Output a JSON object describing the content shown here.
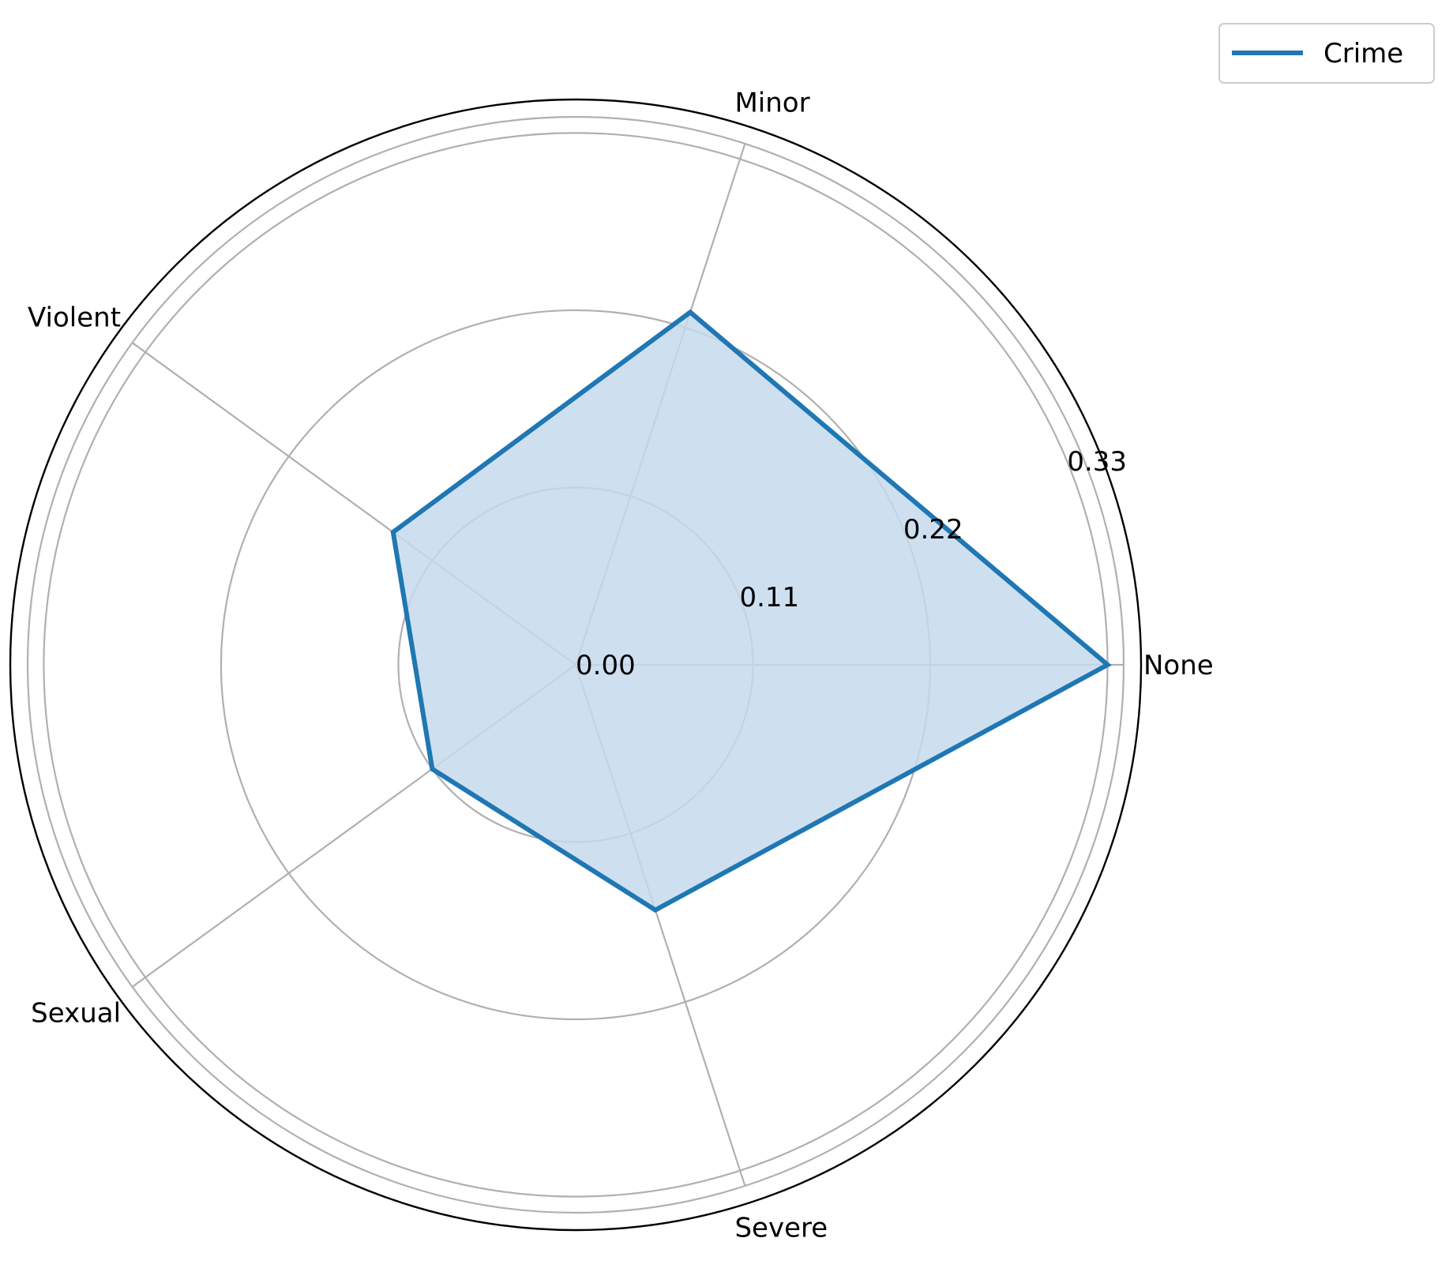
{
  "chart_data": {
    "type": "radar",
    "categories": [
      "None",
      "Minor",
      "Violent",
      "Sexual",
      "Severe"
    ],
    "series": [
      {
        "name": "Crime",
        "values": [
          0.33,
          0.23,
          0.14,
          0.11,
          0.16
        ]
      }
    ],
    "radial_ticks": [
      "0.00",
      "0.11",
      "0.22",
      "0.33"
    ],
    "radial_tick_values": [
      0.0,
      0.11,
      0.22,
      0.33
    ],
    "rlim": [
      0,
      0.34
    ],
    "grid": true,
    "legend_position": "top-right",
    "colors": {
      "line": "#1f77b4",
      "fill": "#c6dbec",
      "grid": "#b0b0b0",
      "frame": "#000000"
    }
  }
}
